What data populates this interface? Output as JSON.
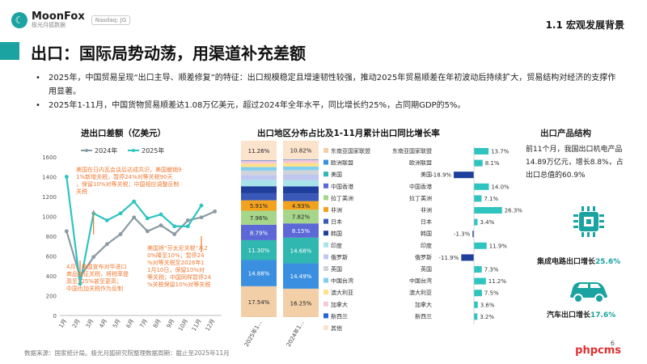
{
  "header": {
    "logo_text": "MoonFox",
    "logo_sub": "极光月狐数据",
    "badge": "Nasdaq: JG",
    "section": "1.1 宏观发展背景"
  },
  "title": "出口：国际局势动荡，用渠道补充差额",
  "bullets": [
    "2025年，中国贸易呈现“出口主导、顺差修复”的特征：出口规模稳定且增速韧性较强，推动2025年贸易顺差在年初波动后持续扩大，贸易结构对经济的支撑作用显著。",
    "2025年1-11月，中国货物贸易顺差达1.08万亿美元，超过2024年全年水平，同比增长约25%，占同期GDP的5%。"
  ],
  "footer": "数据来源：国家统计局。极光月狐研究院整理数据周期：截止至2025年11月",
  "page_number": "6",
  "watermark": "phpcms",
  "colors": {
    "teal": "#1aa3a0",
    "accent": "#2ec4c0",
    "gray": "#8a9aa3",
    "orange": "#f07a32",
    "negative": "#1e3f9c"
  },
  "chart_data": [
    {
      "type": "line",
      "title": "进出口差额（亿美元）",
      "categories": [
        "1月",
        "2月",
        "3月",
        "4月",
        "5月",
        "6月",
        "7月",
        "8月",
        "9月",
        "10月",
        "11月",
        "12月"
      ],
      "ylim": [
        0,
        1600
      ],
      "yticks": [
        "0",
        "200",
        "400",
        "600",
        "800",
        "1000",
        "1200",
        "1400",
        "1600"
      ],
      "series": [
        {
          "name": "2024年",
          "values": [
            850,
            390,
            590,
            720,
            820,
            990,
            850,
            910,
            820,
            960,
            990,
            1050
          ],
          "color": "#8a9aa3"
        },
        {
          "name": "2025年",
          "values": [
            1400,
            320,
            1030,
            960,
            1030,
            1150,
            980,
            1020,
            900,
            900,
            1110,
            null
          ],
          "color": "#2ec4c0"
        }
      ],
      "annotations": [
        "美国在日内瓦会谈后达成共识，美国撤销91%新增关税，暂停24%对等关税90天，保留10%对等关税；中国相应调整反制关税",
        "4月，美国宣布对华进口商品加征关税，将税率提高至125%甚至更高；中国也加关税作为反制",
        "美国将“芬太尼关税”从20%降至10%；暂停24%对等关税至2026年11月10日，保留10%对等关税；中国同样暂停24%关税保留10%对等关税"
      ]
    },
    {
      "type": "bar",
      "title": "出口地区分布占比及1-11月累计出口同比增长率",
      "stack_categories": [
        "2025年1...",
        "2024年1..."
      ],
      "stack_segments": [
        {
          "name": "东南亚国家联盟",
          "values": [
            17.54,
            16.25
          ],
          "label": [
            "17.54%",
            "16.25%"
          ],
          "color": "#f3cfa8"
        },
        {
          "name": "欧洲联盟",
          "values": [
            14.88,
            14.49
          ],
          "label": [
            "14.88%",
            "14.49%"
          ],
          "color": "#3b8fe0"
        },
        {
          "name": "美国",
          "values": [
            11.3,
            14.68
          ],
          "label": [
            "11.30%",
            "14.68%"
          ],
          "color": "#2fb7b0"
        },
        {
          "name": "中国香港",
          "values": [
            8.79,
            8.15
          ],
          "label": [
            "8.79%",
            "8.15%"
          ],
          "color": "#5b68d6"
        },
        {
          "name": "拉丁美洲",
          "values": [
            7.96,
            7.82
          ],
          "label": [
            "7.96%",
            "7.82%"
          ],
          "color": "#a6d68a"
        },
        {
          "name": "非洲",
          "values": [
            5.91,
            4.93
          ],
          "label": [
            "5.91%",
            "4.93%"
          ],
          "color": "#f3a21e"
        },
        {
          "name": "日本",
          "values": [
            4.0,
            4.3
          ],
          "label": [
            "",
            ""
          ],
          "color": "#3a58b8"
        },
        {
          "name": "韩国",
          "values": [
            4.0,
            4.1
          ],
          "label": [
            "",
            ""
          ],
          "color": "#1e3f9c"
        },
        {
          "name": "印度",
          "values": [
            3.6,
            3.5
          ],
          "label": [
            "",
            ""
          ],
          "color": "#a9e3ea"
        },
        {
          "name": "俄罗斯",
          "values": [
            2.8,
            3.2
          ],
          "label": [
            "",
            ""
          ],
          "color": "#bfc7f0"
        },
        {
          "name": "英国",
          "values": [
            2.5,
            2.6
          ],
          "label": [
            "",
            ""
          ],
          "color": "#cfd4da"
        },
        {
          "name": "中国台湾",
          "values": [
            2.0,
            2.1
          ],
          "label": [
            "",
            ""
          ],
          "color": "#7fd0ee"
        },
        {
          "name": "澳大利亚",
          "values": [
            1.9,
            2.0
          ],
          "label": [
            "",
            ""
          ],
          "color": "#ffe08a"
        },
        {
          "name": "加拿大",
          "values": [
            1.5,
            1.6
          ],
          "label": [
            "",
            ""
          ],
          "color": "#f7c9d7"
        },
        {
          "name": "新西兰",
          "values": [
            0.3,
            0.3
          ],
          "label": [
            "",
            ""
          ],
          "color": "#2563d8"
        },
        {
          "name": "其他",
          "values": [
            11.26,
            10.82
          ],
          "label": [
            "11.26%",
            "10.82%"
          ],
          "color": "#fbe3cc"
        }
      ],
      "growth": [
        {
          "name": "东南亚国家联盟",
          "value": 13.7,
          "label": "13.7%"
        },
        {
          "name": "欧洲联盟",
          "value": 8.1,
          "label": "8.1%"
        },
        {
          "name": "美国",
          "value": -18.9,
          "label": "-18.9%"
        },
        {
          "name": "中国香港",
          "value": 14.0,
          "label": "14.0%"
        },
        {
          "name": "拉丁美洲",
          "value": 7.1,
          "label": "7.1%"
        },
        {
          "name": "非洲",
          "value": 26.3,
          "label": "26.3%"
        },
        {
          "name": "日本",
          "value": 3.4,
          "label": "3.4%"
        },
        {
          "name": "韩国",
          "value": -1.3,
          "label": "-1.3%"
        },
        {
          "name": "印度",
          "value": 11.9,
          "label": "11.9%"
        },
        {
          "name": "俄罗斯",
          "value": -11.9,
          "label": "-11.9%"
        },
        {
          "name": "英国",
          "value": 7.3,
          "label": "7.3%"
        },
        {
          "name": "中国台湾",
          "value": 11.2,
          "label": "11.2%"
        },
        {
          "name": "澳大利亚",
          "value": 7.5,
          "label": "7.5%"
        },
        {
          "name": "加拿大",
          "value": 3.6,
          "label": "3.6%"
        },
        {
          "name": "新西兰",
          "value": 3.2,
          "label": "3.2%"
        }
      ]
    }
  ],
  "products": {
    "title": "出口产品结构",
    "text": "前11个月，我国出口机电产品14.89万亿元，增长8.8%，占出口总值的60.9%",
    "chip_label": "集成电路出口增长",
    "chip_value": "25.6%",
    "car_label": "汽车出口增长",
    "car_value": "17.6%",
    "chip_icon": "chip-icon",
    "car_icon": "car-icon"
  }
}
